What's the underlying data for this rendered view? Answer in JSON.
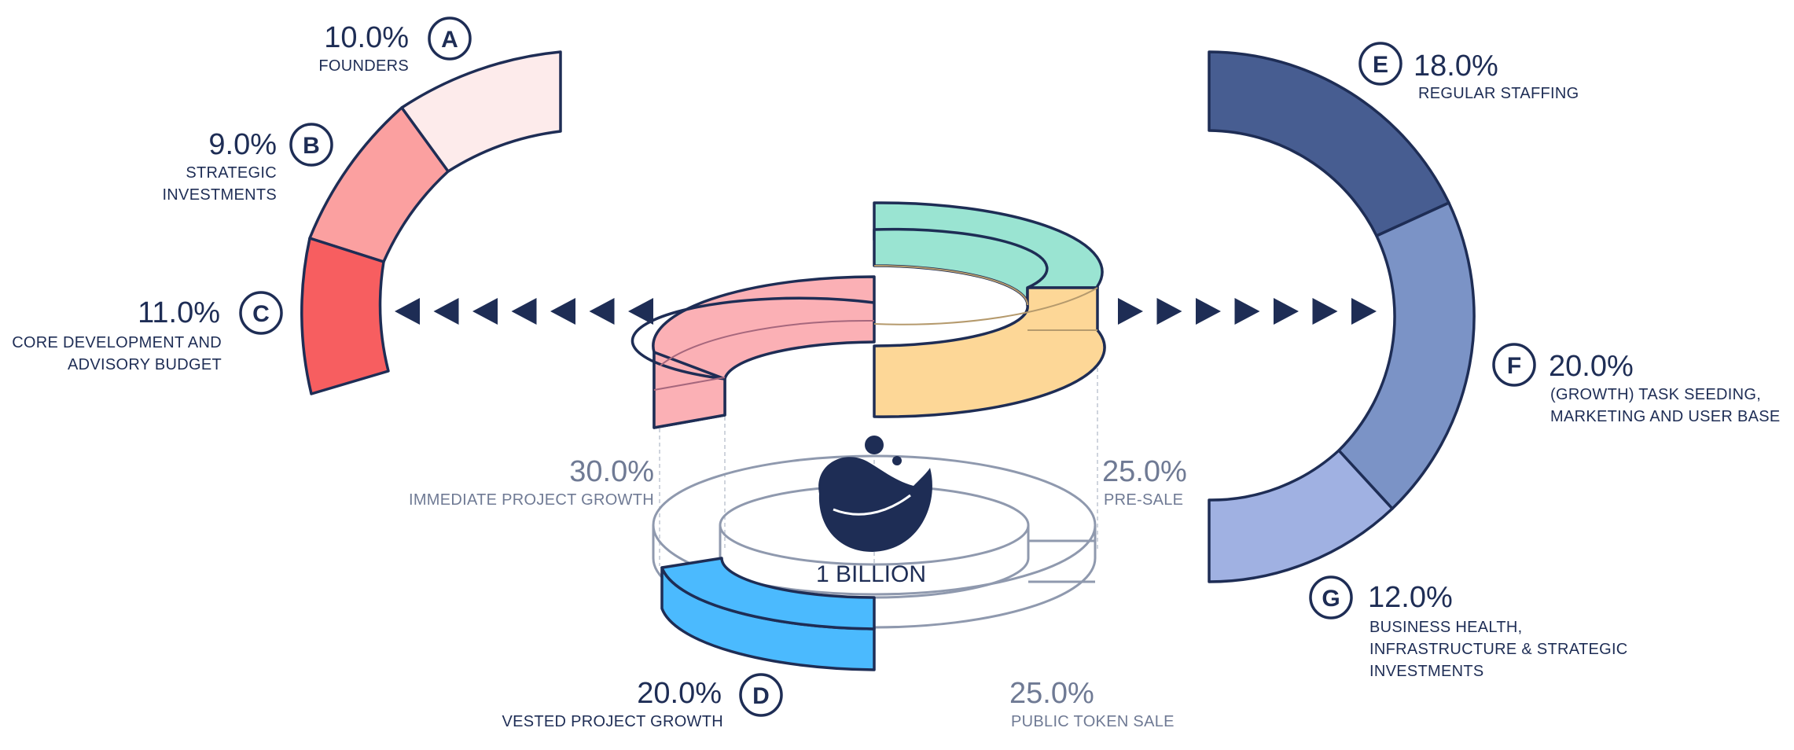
{
  "center": {
    "total_label": "1 BILLION"
  },
  "colors": {
    "navy": "#1e2d55",
    "red_light": "#fdebeb",
    "red_mid": "#fba0a0",
    "red_strong": "#f75e60",
    "blue_dark": "#475d91",
    "blue_mid": "#7b93c6",
    "blue_light": "#a0b1e2",
    "pink_3d": "#fbb0b5",
    "teal_3d": "#9ae4d2",
    "yellow_3d": "#fdd797",
    "cyan_3d": "#4bbafe",
    "wire_grey": "#8f99ae"
  },
  "left_arc": {
    "items": [
      {
        "badge": "A",
        "percent": "10.0%",
        "label_lines": [
          "FOUNDERS"
        ],
        "value": 10.0,
        "color": "#fdebeb"
      },
      {
        "badge": "B",
        "percent": "9.0%",
        "label_lines": [
          "STRATEGIC",
          "INVESTMENTS"
        ],
        "value": 9.0,
        "color": "#fba0a0"
      },
      {
        "badge": "C",
        "percent": "11.0%",
        "label_lines": [
          "CORE DEVELOPMENT AND",
          "ADVISORY BUDGET"
        ],
        "value": 11.0,
        "color": "#f75e60"
      }
    ]
  },
  "right_arc": {
    "items": [
      {
        "badge": "E",
        "percent": "18.0%",
        "label_lines": [
          "REGULAR STAFFING"
        ],
        "value": 18.0,
        "color": "#475d91"
      },
      {
        "badge": "F",
        "percent": "20.0%",
        "label_lines": [
          "(GROWTH) TASK SEEDING,",
          "MARKETING AND USER BASE"
        ],
        "value": 20.0,
        "color": "#7b93c6"
      },
      {
        "badge": "G",
        "percent": "12.0%",
        "label_lines": [
          "BUSINESS HEALTH,",
          "INFRASTRUCTURE & STRATEGIC",
          "INVESTMENTS"
        ],
        "value": 12.0,
        "color": "#a0b1e2"
      }
    ]
  },
  "main_split": [
    {
      "percent": "30.0%",
      "label": "IMMEDIATE PROJECT GROWTH",
      "value": 30.0
    },
    {
      "percent": "25.0%",
      "label": "PRE-SALE",
      "value": 25.0
    },
    {
      "badge": "D",
      "percent": "20.0%",
      "label": "VESTED PROJECT GROWTH",
      "value": 20.0
    },
    {
      "percent": "25.0%",
      "label": "PUBLIC TOKEN SALE",
      "value": 25.0
    }
  ],
  "arrows": {
    "left_count": 7,
    "right_count": 7
  }
}
